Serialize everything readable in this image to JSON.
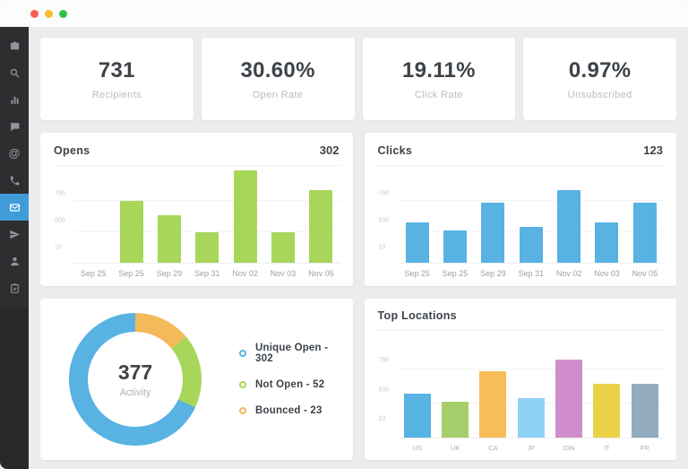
{
  "window": {
    "titlebar": {
      "buttons": [
        "close",
        "minimize",
        "zoom"
      ]
    }
  },
  "sidebar": {
    "active_color": "#3f9cd9",
    "items": [
      {
        "id": "dashboard",
        "icon": "dashboard-icon",
        "active": false
      },
      {
        "id": "search",
        "icon": "search-icon",
        "active": false
      },
      {
        "id": "stats",
        "icon": "bar-chart-icon",
        "active": false
      },
      {
        "id": "messages",
        "icon": "chat-icon",
        "active": false
      },
      {
        "id": "mentions",
        "icon": "at-icon",
        "active": false
      },
      {
        "id": "calls",
        "icon": "phone-icon",
        "active": false
      },
      {
        "id": "mail",
        "icon": "mail-icon",
        "active": true
      },
      {
        "id": "send",
        "icon": "paper-plane-icon",
        "active": false
      },
      {
        "id": "contacts",
        "icon": "user-icon",
        "active": false
      },
      {
        "id": "tasks",
        "icon": "clipboard-check-icon",
        "active": false
      }
    ]
  },
  "stats": [
    {
      "value": "731",
      "label": "Recipients"
    },
    {
      "value": "30.60%",
      "label": "Open Rate"
    },
    {
      "value": "19.11%",
      "label": "Click Rate"
    },
    {
      "value": "0.97%",
      "label": "Unsubscribed"
    }
  ],
  "charts": {
    "opens": {
      "type": "bar",
      "title": "Opens",
      "total": "302",
      "color": "#a7d65a",
      "categories": [
        "Sep 25",
        "Sep 25",
        "Sep 29",
        "Sep 31",
        "Nov 02",
        "Nov 03",
        "Nov 05"
      ],
      "values": [
        0,
        660,
        510,
        330,
        990,
        330,
        780
      ],
      "yticks": [
        "750",
        "500",
        "10"
      ],
      "ymax": 1000
    },
    "clicks": {
      "type": "bar",
      "title": "Clicks",
      "total": "123",
      "color": "#58b2e2",
      "categories": [
        "Sep 25",
        "Sep 25",
        "Sep 29",
        "Sep 31",
        "Nov 02",
        "Nov 03",
        "Nov 05"
      ],
      "values": [
        430,
        350,
        640,
        380,
        780,
        430,
        640
      ],
      "yticks": [
        "750",
        "500",
        "10"
      ],
      "ymax": 1000
    },
    "activity": {
      "type": "donut",
      "center_value": "377",
      "center_label": "Activity",
      "legend": [
        {
          "label": "Unique Open - 302",
          "color": "#58b2e2"
        },
        {
          "label": "Not Open - 52",
          "color": "#a7d65a"
        },
        {
          "label": "Bounced - 23",
          "color": "#f3ba5b"
        }
      ],
      "ring": [
        {
          "color": "#f3ba5b",
          "deg": 50
        },
        {
          "color": "#a7d65a",
          "deg": 65
        },
        {
          "color": "#58b2e2",
          "deg": 245
        }
      ]
    },
    "top_locations": {
      "type": "bar",
      "title": "Top Locations",
      "categories": [
        "US",
        "UK",
        "CA",
        "JP",
        "IDN",
        "IT",
        "FR"
      ],
      "values": [
        430,
        350,
        640,
        380,
        760,
        520,
        520
      ],
      "colors": [
        "#56b3e2",
        "#a5ce6a",
        "#f8bd59",
        "#8ed2f4",
        "#cf8ecb",
        "#e9d248",
        "#92abbd"
      ],
      "yticks": [
        "750",
        "500",
        "10"
      ],
      "ymax": 1000
    }
  }
}
